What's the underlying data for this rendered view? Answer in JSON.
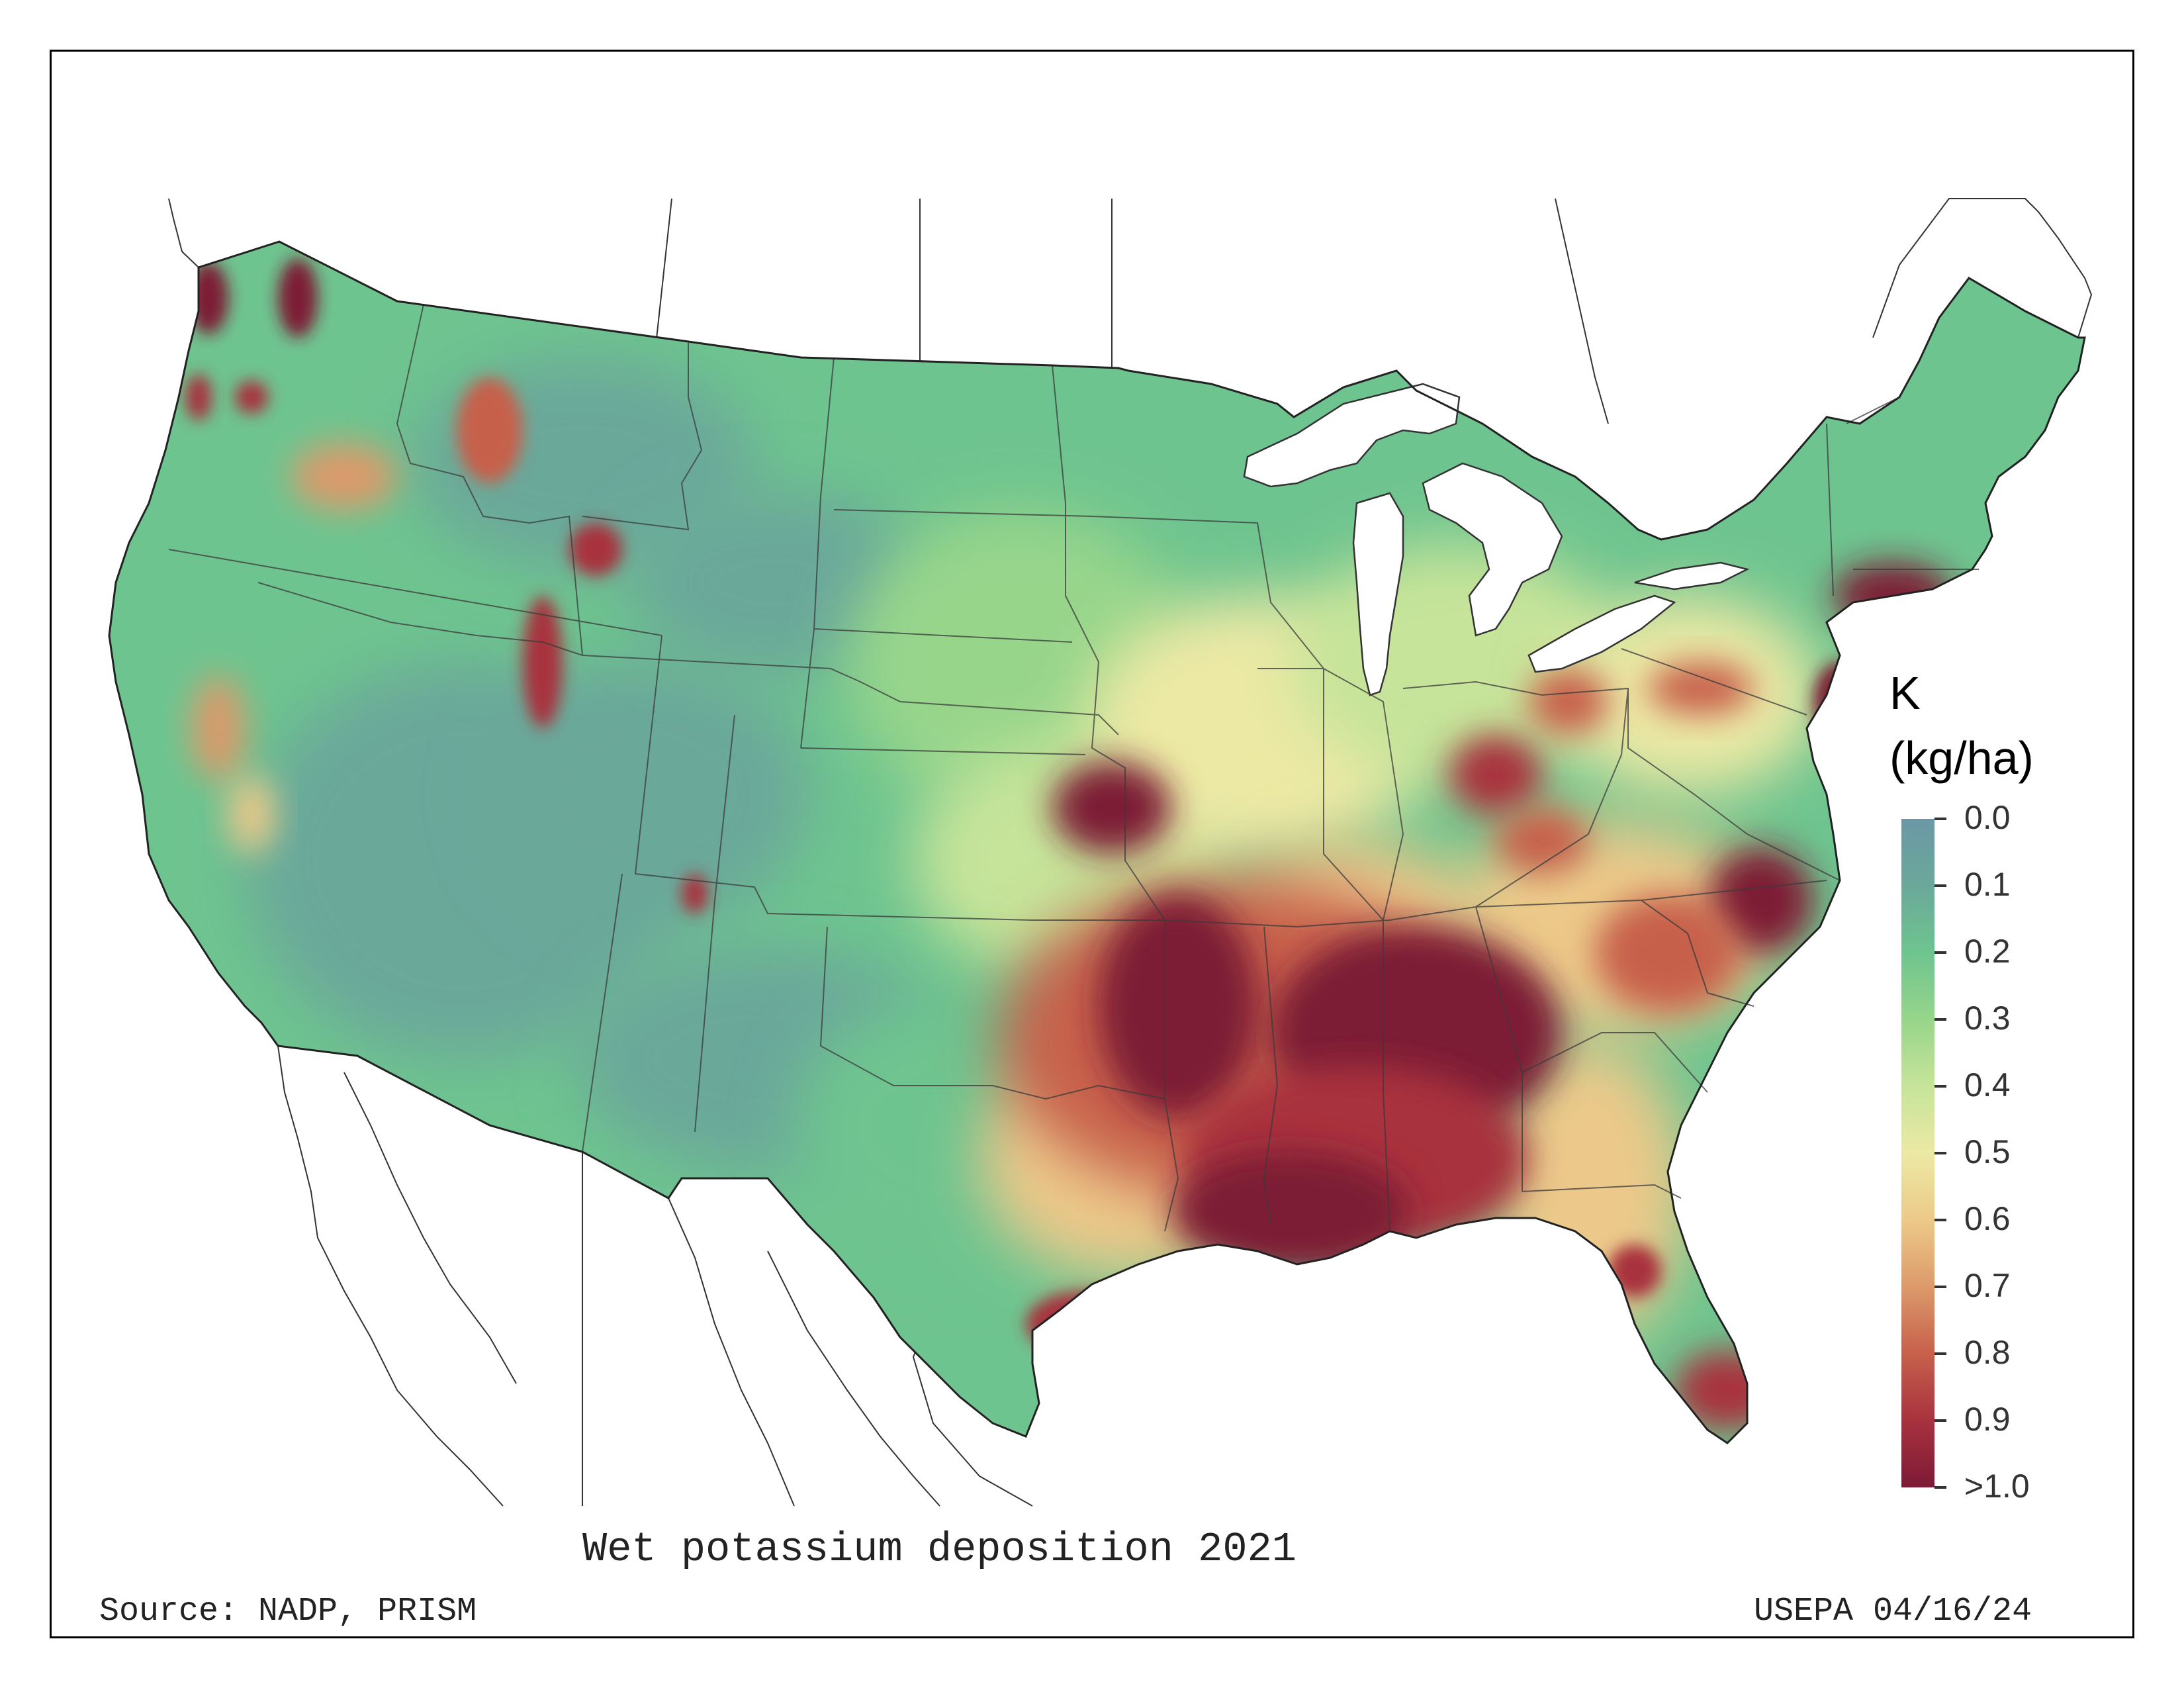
{
  "caption": "Wet potassium deposition 2021",
  "source": "Source: NADP, PRISM",
  "credit": "USEPA 04/16/24",
  "legend": {
    "title_line1": "K",
    "title_line2": "(kg/ha)",
    "labels": [
      "0.0",
      "0.1",
      "0.2",
      "0.3",
      "0.4",
      "0.5",
      "0.6",
      "0.7",
      "0.8",
      "0.9",
      ">1.0"
    ],
    "min": 0.0,
    "max": 1.0,
    "colors": [
      "#6b98a6",
      "#6ba89a",
      "#6ec48f",
      "#97d58b",
      "#c6e49a",
      "#ece9a4",
      "#ecc98a",
      "#dd9a6a",
      "#c7604c",
      "#a8323e",
      "#7d1a35"
    ]
  },
  "map": {
    "region": "Contiguous United States",
    "variable": "Wet potassium deposition",
    "year": 2021,
    "low_color": "#6ec48f",
    "high_color": "#7d1a35"
  }
}
